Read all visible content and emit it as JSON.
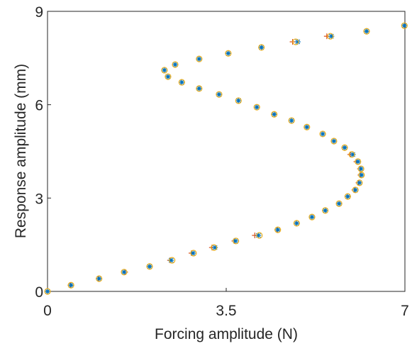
{
  "chart_data": {
    "type": "scatter",
    "xlabel": "Forcing amplitude (N)",
    "ylabel": "Response amplitude (mm)",
    "xlim": [
      0,
      7
    ],
    "ylim": [
      0,
      9
    ],
    "xticks": [
      0,
      3.5,
      7
    ],
    "yticks": [
      0,
      3,
      6,
      9
    ],
    "grid": false,
    "series": [
      {
        "marker": "plus",
        "color": "#d95319",
        "x": [
          0,
          0.45,
          1.0,
          1.52,
          2.0,
          2.4,
          2.82,
          3.22,
          3.66,
          4.06,
          4.5,
          4.88,
          5.18,
          5.44,
          5.71,
          5.88,
          6.01,
          6.09,
          6.13,
          6.12,
          6.05,
          5.93,
          5.82,
          5.61,
          5.39,
          5.08,
          4.78,
          4.44,
          4.1,
          3.74,
          3.36,
          2.97,
          2.63,
          2.36,
          2.29,
          2.5,
          2.97,
          3.54,
          4.19,
          4.8,
          5.47,
          6.25,
          6.99
        ],
        "y": [
          0,
          0.2,
          0.41,
          0.62,
          0.8,
          1.0,
          1.23,
          1.41,
          1.62,
          1.8,
          1.98,
          2.19,
          2.39,
          2.6,
          2.82,
          3.05,
          3.26,
          3.49,
          3.74,
          3.94,
          4.17,
          4.4,
          4.62,
          4.83,
          5.06,
          5.28,
          5.49,
          5.69,
          5.92,
          6.13,
          6.33,
          6.52,
          6.72,
          6.9,
          7.11,
          7.29,
          7.47,
          7.65,
          7.84,
          8.02,
          8.2,
          8.36,
          8.54
        ]
      },
      {
        "marker": "star",
        "color": "#0072bd",
        "x": [
          0,
          0.46,
          1.01,
          1.5,
          2.0,
          2.42,
          2.85,
          3.28,
          3.68,
          4.13,
          4.51,
          4.88,
          5.18,
          5.44,
          5.71,
          5.88,
          6.03,
          6.11,
          6.15,
          6.14,
          6.08,
          5.98,
          5.82,
          5.61,
          5.39,
          5.08,
          4.78,
          4.44,
          4.1,
          3.74,
          3.36,
          2.97,
          2.63,
          2.36,
          2.29,
          2.5,
          2.97,
          3.54,
          4.19,
          4.9,
          5.56,
          6.25,
          6.99
        ],
        "y": [
          0,
          0.2,
          0.41,
          0.62,
          0.8,
          1.0,
          1.23,
          1.41,
          1.62,
          1.8,
          1.98,
          2.19,
          2.39,
          2.6,
          2.82,
          3.05,
          3.26,
          3.49,
          3.74,
          3.94,
          4.17,
          4.4,
          4.62,
          4.83,
          5.06,
          5.28,
          5.49,
          5.69,
          5.92,
          6.13,
          6.33,
          6.52,
          6.72,
          6.9,
          7.11,
          7.29,
          7.47,
          7.65,
          7.84,
          8.02,
          8.2,
          8.36,
          8.54
        ]
      },
      {
        "marker": "circle",
        "color": "#edb120",
        "x": [
          0,
          0.46,
          1.01,
          1.5,
          2.0,
          2.44,
          2.86,
          3.26,
          3.69,
          4.15,
          4.51,
          4.88,
          5.18,
          5.44,
          5.71,
          5.88,
          6.03,
          6.11,
          6.15,
          6.14,
          6.08,
          5.96,
          5.82,
          5.61,
          5.39,
          5.08,
          4.78,
          4.44,
          4.1,
          3.74,
          3.36,
          2.97,
          2.63,
          2.36,
          2.29,
          2.5,
          2.97,
          3.54,
          4.19,
          4.86,
          5.54,
          6.25,
          6.99
        ],
        "y": [
          0,
          0.2,
          0.41,
          0.62,
          0.8,
          1.0,
          1.23,
          1.41,
          1.62,
          1.8,
          1.98,
          2.19,
          2.39,
          2.6,
          2.82,
          3.05,
          3.26,
          3.49,
          3.74,
          3.94,
          4.17,
          4.4,
          4.62,
          4.83,
          5.06,
          5.28,
          5.49,
          5.69,
          5.92,
          6.13,
          6.33,
          6.52,
          6.72,
          6.9,
          7.11,
          7.29,
          7.47,
          7.65,
          7.84,
          8.02,
          8.2,
          8.36,
          8.54
        ]
      }
    ]
  }
}
